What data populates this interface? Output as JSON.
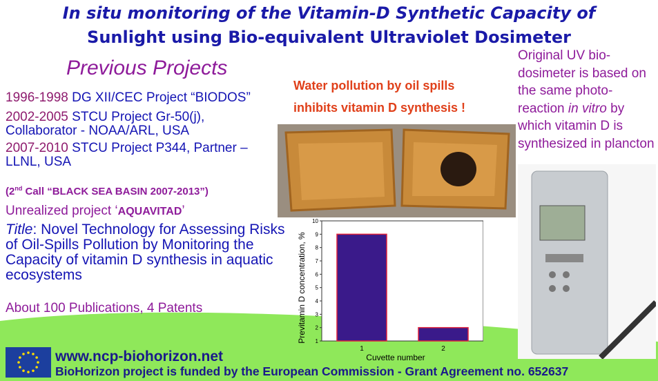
{
  "title": {
    "line1_italic": "In situ",
    "line1_rest": " monitoring of the Vitamin-D Synthetic Capacity of",
    "line2": "Sunlight using Bio-equivalent Ultraviolet Dosimeter"
  },
  "previous_projects": {
    "heading": "Previous Projects",
    "items": [
      {
        "years": "1996-1998",
        "text": " DG XII/CEC Project “BIODOS”"
      },
      {
        "years": "2002-2005",
        "text": " STCU Project Gr-50(j), Collaborator - NOAA/ARL, USA"
      },
      {
        "years": "2007-2010",
        "text": " STCU Project P344, Partner – LLNL, USA"
      }
    ],
    "call_pre": "(2",
    "call_sup": "nd",
    "call_rest": " Call “BLACK SEA BASIN 2007-2013”)",
    "unrealized_label": "Unrealized project  ‘",
    "unrealized_name": "AQUAVITAD",
    "unrealized_end": "’",
    "title_label": "Title",
    "title_text": ":   Novel Technology for Assessing Risks of Oil-Spills Pollution by Monitoring the Capacity of vitamin D synthesis in aquatic ecosystems",
    "publications": "About 100 Publications, 4 Patents"
  },
  "water_caption": {
    "line1": "Water pollution by oil spills",
    "line2": "inhibits vitamin D synthesis !"
  },
  "original_note": {
    "pre": "Original UV bio-dosimeter is based on the same photo-reaction ",
    "italic": "in vitro",
    "post": " by which vitamin D is synthesized in plancton"
  },
  "footer": {
    "url": "www.ncp-biohorizon.net",
    "funded": "BioHorizon project is funded by the European Commission - Grant Agreement no. 652637"
  },
  "colors": {
    "title": "#1a1aa8",
    "accent": "#8e1b9a",
    "green": "#8fe85a",
    "bar": "#3a1a8a",
    "bar_edge": "#e0203a"
  },
  "chart_data": {
    "type": "bar",
    "categories": [
      "1",
      "2"
    ],
    "values": [
      9,
      2
    ],
    "xlabel": "Cuvette number",
    "ylabel": "Previtamin D concentration, %",
    "ylim": [
      1,
      10
    ],
    "yticks": [
      "1",
      "2",
      "3",
      "4",
      "5",
      "6",
      "7",
      "8",
      "9",
      "10"
    ]
  }
}
